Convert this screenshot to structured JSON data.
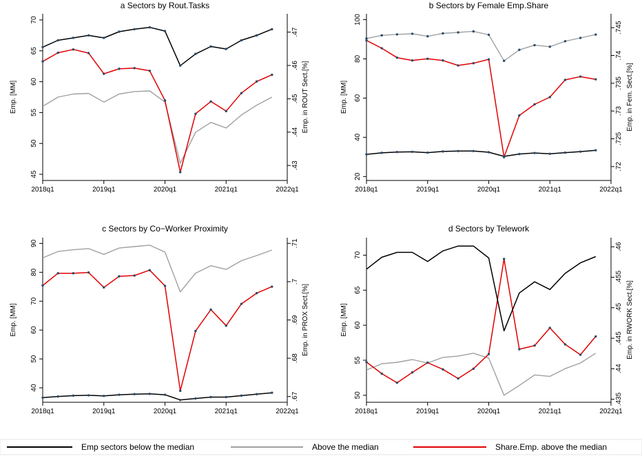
{
  "colors": {
    "below": "#000000",
    "above": "#a0a0a0",
    "share": "#e00000",
    "marker": "#2a4a6a"
  },
  "legend": [
    {
      "key": "below",
      "label": "Emp sectors below the median"
    },
    {
      "key": "above",
      "label": "Above the median"
    },
    {
      "key": "share",
      "label": "Share.Emp. above the median"
    }
  ],
  "chart_data": [
    {
      "type": "line",
      "title": "a Sectors by Rout.Tasks",
      "ylabel": "Emp. [MM]",
      "ylabel_right": "Emp. in ROUT Sect.[%]",
      "x_ticks": [
        "2018q1",
        "2019q1",
        "2020q1",
        "2021q1",
        "2022q1"
      ],
      "x": [
        0,
        1,
        2,
        3,
        4,
        5,
        6,
        7,
        8,
        9,
        10,
        11,
        12,
        13,
        14,
        15
      ],
      "ylim": [
        44,
        71
      ],
      "yticks": [
        45,
        50,
        55,
        60,
        65,
        70
      ],
      "ylim_right": [
        0.4255,
        0.4755
      ],
      "yticks_right": [
        0.43,
        0.44,
        0.45,
        0.46,
        0.47
      ],
      "yticks_right_labels": [
        ".43",
        ".44",
        ".45",
        ".46",
        ".47"
      ],
      "series": [
        {
          "key": "below",
          "name": "Emp sectors below the median",
          "axis": "left",
          "markers": true,
          "values": [
            65.6,
            66.7,
            67.1,
            67.5,
            67.1,
            68.1,
            68.5,
            68.8,
            68.2,
            62.6,
            64.5,
            65.7,
            65.3,
            66.7,
            67.5,
            68.5
          ]
        },
        {
          "key": "above",
          "name": "Above the median",
          "axis": "left",
          "markers": false,
          "values": [
            56.0,
            57.5,
            58.0,
            58.1,
            56.7,
            58.0,
            58.4,
            58.5,
            56.7,
            46.8,
            51.8,
            53.4,
            52.5,
            54.6,
            56.2,
            57.5
          ]
        },
        {
          "key": "share",
          "name": "Share.Emp. above the median",
          "axis": "right",
          "markers": true,
          "values": [
            0.4612,
            0.4638,
            0.4648,
            0.4637,
            0.4575,
            0.459,
            0.4592,
            0.4584,
            0.4495,
            0.428,
            0.4455,
            0.4492,
            0.4463,
            0.4517,
            0.4552,
            0.4572
          ]
        }
      ]
    },
    {
      "type": "line",
      "title": "b Sectors by Female Emp.Share",
      "ylabel": "Emp. [MM]",
      "ylabel_right": "Emp. in Fem. Sect.[%]",
      "x_ticks": [
        "2018q1",
        "2019q1",
        "2020q1",
        "2021q1",
        "2022q1"
      ],
      "x": [
        0,
        1,
        2,
        3,
        4,
        5,
        6,
        7,
        8,
        9,
        10,
        11,
        12,
        13,
        14,
        15
      ],
      "ylim": [
        18,
        103
      ],
      "yticks": [
        20,
        40,
        60,
        80,
        100
      ],
      "ylim_right": [
        0.7175,
        0.7475
      ],
      "yticks_right": [
        0.72,
        0.725,
        0.73,
        0.735,
        0.74,
        0.745
      ],
      "yticks_right_labels": [
        ".72",
        ".725",
        ".73",
        ".735",
        ".74",
        ".745"
      ],
      "series": [
        {
          "key": "below",
          "name": "Emp sectors below the median",
          "axis": "left",
          "markers": true,
          "values": [
            31.3,
            32.1,
            32.5,
            32.6,
            32.2,
            32.8,
            33.0,
            33.0,
            32.4,
            30.3,
            31.5,
            32.0,
            31.6,
            32.2,
            32.7,
            33.4
          ]
        },
        {
          "key": "above",
          "name": "Above the median",
          "axis": "left",
          "markers": true,
          "values": [
            90.4,
            92.0,
            92.5,
            92.8,
            91.5,
            93.0,
            93.5,
            94.0,
            92.3,
            79.0,
            84.6,
            87.0,
            86.2,
            89.0,
            90.7,
            92.4
          ]
        },
        {
          "key": "share",
          "name": "Share.Emp. above the median",
          "axis": "right",
          "markers": true,
          "values": [
            0.7427,
            0.7413,
            0.7396,
            0.7391,
            0.7394,
            0.7391,
            0.7382,
            0.7386,
            0.7393,
            0.7217,
            0.7292,
            0.7312,
            0.7325,
            0.7356,
            0.7362,
            0.7357
          ]
        }
      ]
    },
    {
      "type": "line",
      "title": "c Sectors by Co−Worker Proximity",
      "ylabel": "Emp. [MM]",
      "ylabel_right": "Emp. in PROX Sect.[%]",
      "x_ticks": [
        "2018q1",
        "2019q1",
        "2020q1",
        "2021q1",
        "2022q1"
      ],
      "x": [
        0,
        1,
        2,
        3,
        4,
        5,
        6,
        7,
        8,
        9,
        10,
        11,
        12,
        13,
        14,
        15
      ],
      "ylim": [
        35,
        92
      ],
      "yticks": [
        40,
        50,
        60,
        70,
        80,
        90
      ],
      "ylim_right": [
        0.6685,
        0.7115
      ],
      "yticks_right": [
        0.67,
        0.68,
        0.69,
        0.7,
        0.71
      ],
      "yticks_right_labels": [
        ".67",
        ".68",
        ".69",
        ".7",
        ".71"
      ],
      "series": [
        {
          "key": "below",
          "name": "Emp sectors below the median",
          "axis": "left",
          "markers": true,
          "values": [
            36.6,
            37.0,
            37.3,
            37.4,
            37.2,
            37.6,
            37.8,
            37.9,
            37.6,
            35.8,
            36.3,
            36.8,
            36.8,
            37.3,
            37.8,
            38.3
          ]
        },
        {
          "key": "above",
          "name": "Above the median",
          "axis": "left",
          "markers": false,
          "values": [
            85.0,
            87.2,
            87.8,
            88.2,
            86.2,
            88.4,
            88.9,
            89.4,
            87.0,
            73.2,
            79.7,
            82.3,
            81.0,
            84.0,
            85.8,
            87.7
          ]
        },
        {
          "key": "share",
          "name": "Share.Emp. above the median",
          "axis": "right",
          "markers": true,
          "values": [
            0.699,
            0.7022,
            0.7022,
            0.7024,
            0.6985,
            0.7014,
            0.7016,
            0.703,
            0.6989,
            0.6715,
            0.6871,
            0.6927,
            0.6885,
            0.6942,
            0.697,
            0.6987
          ]
        }
      ]
    },
    {
      "type": "line",
      "title": "d Sectors by Telework",
      "ylabel": "Emp. [MM]",
      "ylabel_right": "Emp. in RWORK Sect.[%]",
      "x_ticks": [
        "2018q1",
        "2019q1",
        "2020q1",
        "2021q1",
        "2022q1"
      ],
      "x": [
        0,
        1,
        2,
        3,
        4,
        5,
        6,
        7,
        8,
        9,
        10,
        11,
        12,
        13,
        14,
        15
      ],
      "ylim": [
        49,
        72.5
      ],
      "yticks": [
        50,
        55,
        60,
        65,
        70
      ],
      "ylim_right": [
        0.4345,
        0.4615
      ],
      "yticks_right": [
        0.435,
        0.44,
        0.445,
        0.45,
        0.455,
        0.46
      ],
      "yticks_right_labels": [
        ".435",
        ".44",
        ".445",
        ".45",
        ".455",
        ".46"
      ],
      "series": [
        {
          "key": "below",
          "name": "Emp sectors below the median",
          "axis": "left",
          "markers": false,
          "values": [
            68.0,
            69.7,
            70.4,
            70.4,
            69.1,
            70.6,
            71.3,
            71.3,
            69.6,
            59.2,
            64.6,
            66.2,
            65.1,
            67.4,
            68.9,
            69.8
          ]
        },
        {
          "key": "above",
          "name": "Above the median",
          "axis": "left",
          "markers": false,
          "values": [
            53.6,
            54.5,
            54.7,
            55.1,
            54.6,
            55.4,
            55.6,
            56.0,
            55.3,
            50.0,
            51.4,
            52.9,
            52.7,
            53.8,
            54.6,
            56.0
          ]
        },
        {
          "key": "share",
          "name": "Share.Emp. above the median",
          "axis": "right",
          "markers": true,
          "values": [
            0.4411,
            0.4392,
            0.4377,
            0.4394,
            0.441,
            0.4399,
            0.4384,
            0.44,
            0.4424,
            0.458,
            0.4432,
            0.4438,
            0.4467,
            0.444,
            0.4423,
            0.4453
          ]
        }
      ]
    }
  ]
}
